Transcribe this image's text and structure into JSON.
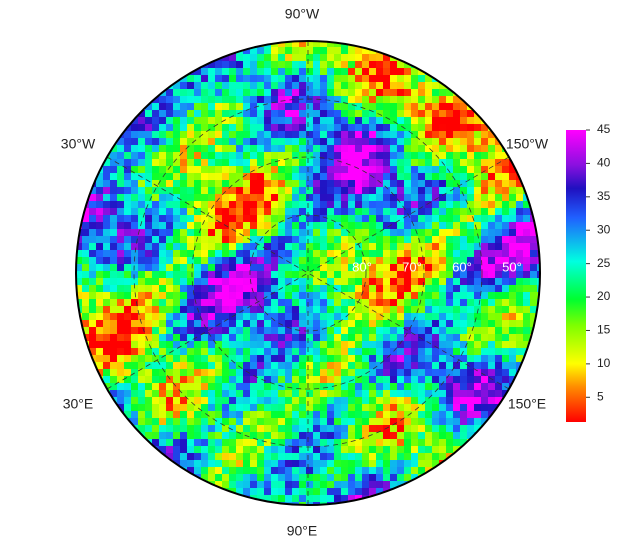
{
  "map": {
    "longitude_labels": [
      "90°W",
      "30°W",
      "150°W",
      "30°E",
      "150°E",
      "90°E"
    ],
    "latitude_labels": [
      "80°",
      "70°",
      "60°",
      "50°"
    ]
  },
  "colorbar": {
    "range": [
      1.3,
      45
    ],
    "ticks": [
      5,
      10,
      15,
      20,
      25,
      30,
      35,
      40,
      45
    ]
  }
}
